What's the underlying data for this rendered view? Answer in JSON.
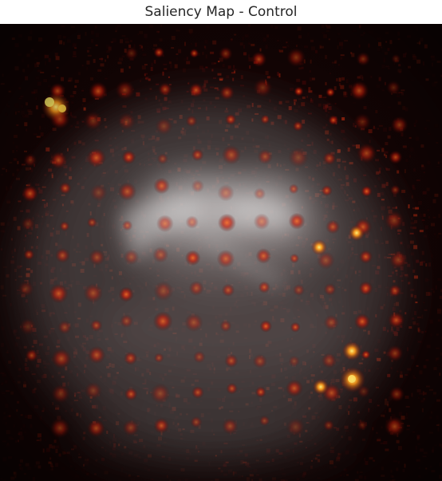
{
  "figure": {
    "title": "Saliency Map - Control"
  },
  "heatmap": {
    "colormap": "hot",
    "background_color": "#130404",
    "overlay_color": "#d8d8d8",
    "content": "saliency heatmap overlaid on a blurred grayscale face"
  }
}
